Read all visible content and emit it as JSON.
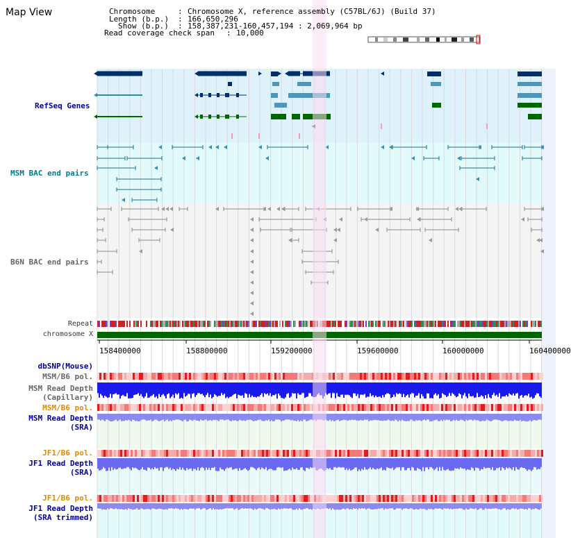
{
  "page_title": "Map View",
  "info": {
    "chromosome_label": "Chromosome",
    "chromosome_value": "Chromosome X, reference assembly (C57BL/6J) (Build 37)",
    "length_label": "Length (b.p.)",
    "length_value": "166,650,296",
    "show_label": "Show (b.p.)",
    "show_value": "158,387,231-160,457,194 : 2,069,964 bp",
    "coverage_label": "Read coverage check span",
    "coverage_value": "10,000"
  },
  "tracks": {
    "refseq": "RefSeq Genes",
    "msm_bac": "MSM BAC end pairs",
    "b6n_bac": "B6N BAC end pairs",
    "repeat": "Repeat",
    "chromosome": "chromosome X"
  },
  "axis_ticks": [
    "158400000",
    "158800000",
    "159200000",
    "159600000",
    "160000000",
    "160400000"
  ],
  "lower_tracks": {
    "dbsnp": "dbSNP(Mouse)",
    "msm_b6_pol_1": "MSM/B6 pol.",
    "msm_read_depth_cap_1": "MSM Read Depth",
    "msm_read_depth_cap_2": "(Capillary)",
    "msm_b6_pol_2": "MSM/B6 pol.",
    "msm_read_depth_sra_1": "MSM Read Depth",
    "msm_read_depth_sra_2": "(SRA)",
    "jf1_b6_pol_1": "JF1/B6 pol.",
    "jf1_read_depth_sra_1": "JF1 Read Depth",
    "jf1_read_depth_sra_2": "(SRA)",
    "jf1_b6_pol_2": "JF1/B6 pol.",
    "jf1_read_depth_trim_1": "JF1 Read Depth",
    "jf1_read_depth_trim_2": "(SRA trimmed)"
  },
  "colors": {
    "refseq_bg": "#dff2fb",
    "msm_bg": "#e2fafa",
    "b6n_bg": "#f4f4f4",
    "gene_dark": "#002f6c",
    "gene_mid": "#4f97b8",
    "gene_green": "#006600",
    "highlight": "#f9dcf0",
    "depth_blue": "#1a1aee",
    "depth_light": "#8a8af0",
    "pol_red": "#ee3333",
    "chrom_green": "#006600"
  }
}
